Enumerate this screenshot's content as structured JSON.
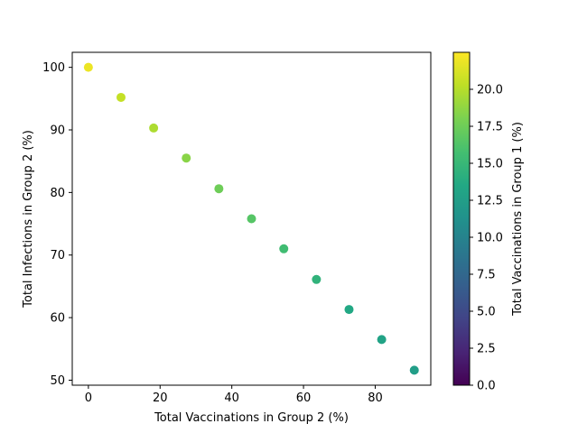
{
  "chart_data": {
    "type": "scatter",
    "xlabel": "Total Vaccinations in Group 2 (%)",
    "ylabel": "Total Infections in Group 2 (%)",
    "xlim": [
      -4.5,
      95.5
    ],
    "ylim": [
      49.2,
      102.4
    ],
    "xticks": [
      0,
      20,
      40,
      60,
      80
    ],
    "yticks": [
      50,
      60,
      70,
      80,
      90,
      100
    ],
    "colorbar": {
      "label": "Total Vaccinations in Group 1 (%)",
      "colormap": "viridis",
      "range": [
        0,
        22.5
      ],
      "ticks": [
        0.0,
        2.5,
        5.0,
        7.5,
        10.0,
        12.5,
        15.0,
        17.5,
        20.0
      ],
      "tick_labels": [
        "0.0",
        "2.5",
        "5.0",
        "7.5",
        "10.0",
        "12.5",
        "15.0",
        "17.5",
        "20.0"
      ]
    },
    "points": [
      {
        "x": 0.0,
        "y": 100.0,
        "c": 21.9
      },
      {
        "x": 9.1,
        "y": 95.2,
        "c": 20.5
      },
      {
        "x": 18.2,
        "y": 90.3,
        "c": 19.7
      },
      {
        "x": 27.3,
        "y": 85.5,
        "c": 18.5
      },
      {
        "x": 36.4,
        "y": 80.6,
        "c": 17.5
      },
      {
        "x": 45.5,
        "y": 75.8,
        "c": 16.5
      },
      {
        "x": 54.5,
        "y": 71.0,
        "c": 15.5
      },
      {
        "x": 63.6,
        "y": 66.1,
        "c": 14.5
      },
      {
        "x": 72.7,
        "y": 61.3,
        "c": 13.5
      },
      {
        "x": 81.8,
        "y": 56.5,
        "c": 13.0
      },
      {
        "x": 90.9,
        "y": 51.6,
        "c": 12.5
      }
    ]
  }
}
